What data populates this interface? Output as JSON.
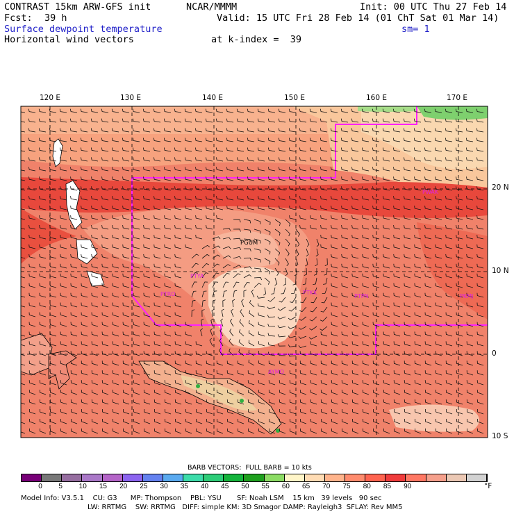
{
  "header": {
    "model": "CONTRAST 15km ARW-GFS init",
    "org": "NCAR/MMMM",
    "init": "Init: 00 UTC Thu 27 Feb 14",
    "fcst_label": "Fcst:",
    "fcst_value": "39 h",
    "valid": "Valid: 15 UTC Fri 28 Feb 14 (01 ChT Sat 01 Mar 14)",
    "field1": "Surface dewpoint temperature",
    "smooth": "sm= 1",
    "field2": "Horizontal wind vectors",
    "kindex": "at k-index =  39"
  },
  "map": {
    "lon_labels": [
      "120 E",
      "130 E",
      "140 E",
      "150 E",
      "160 E",
      "170 E"
    ],
    "lat_labels": [
      "20 N",
      "10 N",
      "0",
      "10 S"
    ],
    "stations": [
      "PWAK",
      "PGUM",
      "PTYA",
      "PTRO",
      "PTKK",
      "PTPN",
      "PKMJ",
      "AYMO"
    ],
    "colors": {
      "land": "#ffffff",
      "coast": "#000000",
      "domain_line": "#ff20ff",
      "grid_line": "#000000"
    }
  },
  "legend": {
    "barb_note": "BARB VECTORS:  FULL BARB = 10 kts",
    "ticks": [
      "0",
      "5",
      "10",
      "15",
      "20",
      "25",
      "30",
      "35",
      "40",
      "45",
      "50",
      "55",
      "60",
      "65",
      "70",
      "75",
      "80",
      "85",
      "90"
    ],
    "unit": "°F",
    "colors": [
      "#780078",
      "#787878",
      "#966ea0",
      "#aa78c8",
      "#b464c8",
      "#8c64f0",
      "#6482f0",
      "#5aaaf0",
      "#3cdcaa",
      "#2dcd78",
      "#14b43c",
      "#1ea01e",
      "#8cdc64",
      "#fff5c8",
      "#ffdcb4",
      "#ffb48c",
      "#ff8c6e",
      "#ff6450",
      "#f03c3c",
      "#ff7864",
      "#f5a08c",
      "#ebc8b4",
      "#d2d2d2"
    ]
  },
  "footer": {
    "line1": "Model Info: V3.5.1    CU: G3      MP: Thompson    PBL: YSU       SF: Noah LSM    15 km   39 levels   90 sec",
    "line2": "LW: RRTMG    SW: RRTMG   DIFF: simple KM: 3D Smagor DAMP: Rayleigh3  SFLAY: Rev MM5"
  }
}
